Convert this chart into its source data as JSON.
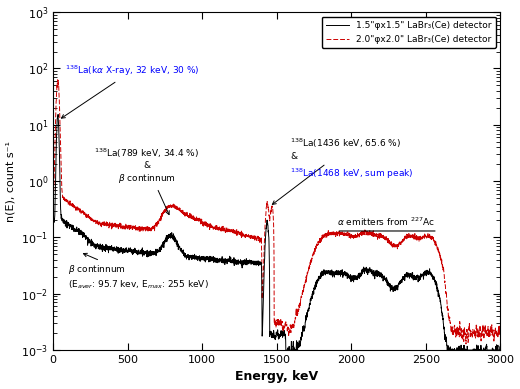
{
  "xlabel": "Energy, keV",
  "ylabel": "n(E), count s⁻¹",
  "xlim": [
    0,
    3000
  ],
  "ylim": [
    0.001,
    1000.0
  ],
  "legend_labels": [
    "1.5\"φx1.5\" LaBr₃(Ce) detector",
    "2.0\"φx2.0\" LaBr₃(Ce) detector"
  ],
  "line1_color": "#000000",
  "line2_color": "#cc0000",
  "xticks": [
    0,
    500,
    1000,
    1500,
    2000,
    2500,
    3000
  ],
  "figsize": [
    5.2,
    3.89
  ],
  "dpi": 100
}
